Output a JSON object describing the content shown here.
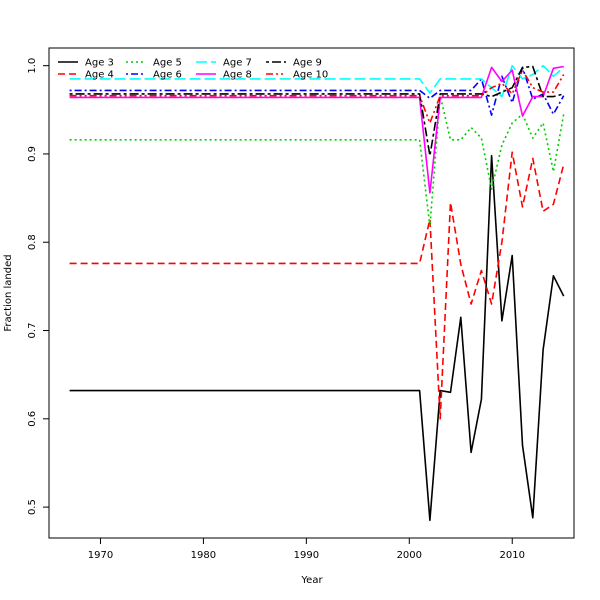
{
  "chart_data": {
    "type": "line",
    "title": "",
    "xlabel": "Year",
    "ylabel": "Fraction landed",
    "xlim": [
      1965,
      2016
    ],
    "ylim": [
      0.465,
      1.02
    ],
    "xticks": [
      1970,
      1980,
      1990,
      2000,
      2010
    ],
    "xtick_labels": [
      "1970",
      "1980",
      "1990",
      "2000",
      "2010"
    ],
    "yticks": [
      0.5,
      0.6,
      0.7,
      0.8,
      0.9,
      1.0
    ],
    "ytick_labels": [
      "0.5",
      "0.6",
      "0.7",
      "0.8",
      "0.9",
      "1.0"
    ],
    "grid": false,
    "legend_position": "top-left",
    "x": [
      1967,
      1968,
      1969,
      1970,
      1971,
      1972,
      1973,
      1974,
      1975,
      1976,
      1977,
      1978,
      1979,
      1980,
      1981,
      1982,
      1983,
      1984,
      1985,
      1986,
      1987,
      1988,
      1989,
      1990,
      1991,
      1992,
      1993,
      1994,
      1995,
      1996,
      1997,
      1998,
      1999,
      2000,
      2001,
      2002,
      2003,
      2004,
      2005,
      2006,
      2007,
      2008,
      2009,
      2010,
      2011,
      2012,
      2013,
      2014,
      2015
    ],
    "series": [
      {
        "name": "Age 3",
        "color": "#000000",
        "dash": "solid",
        "values": [
          0.632,
          0.632,
          0.632,
          0.632,
          0.632,
          0.632,
          0.632,
          0.632,
          0.632,
          0.632,
          0.632,
          0.632,
          0.632,
          0.632,
          0.632,
          0.632,
          0.632,
          0.632,
          0.632,
          0.632,
          0.632,
          0.632,
          0.632,
          0.632,
          0.632,
          0.632,
          0.632,
          0.632,
          0.632,
          0.632,
          0.632,
          0.632,
          0.632,
          0.632,
          0.632,
          0.485,
          0.632,
          0.63,
          0.715,
          0.562,
          0.622,
          0.898,
          0.711,
          0.785,
          0.57,
          0.488,
          0.678,
          0.762,
          0.739
        ]
      },
      {
        "name": "Age 4",
        "color": "#ff0000",
        "dash": "dashed",
        "values": [
          0.776,
          0.776,
          0.776,
          0.776,
          0.776,
          0.776,
          0.776,
          0.776,
          0.776,
          0.776,
          0.776,
          0.776,
          0.776,
          0.776,
          0.776,
          0.776,
          0.776,
          0.776,
          0.776,
          0.776,
          0.776,
          0.776,
          0.776,
          0.776,
          0.776,
          0.776,
          0.776,
          0.776,
          0.776,
          0.776,
          0.776,
          0.776,
          0.776,
          0.776,
          0.776,
          0.826,
          0.6,
          0.845,
          0.775,
          0.73,
          0.768,
          0.73,
          0.8,
          0.902,
          0.84,
          0.895,
          0.835,
          0.843,
          0.888
        ]
      },
      {
        "name": "Age 5",
        "color": "#00cd00",
        "dash": "dotted",
        "values": [
          0.916,
          0.916,
          0.916,
          0.916,
          0.916,
          0.916,
          0.916,
          0.916,
          0.916,
          0.916,
          0.916,
          0.916,
          0.916,
          0.916,
          0.916,
          0.916,
          0.916,
          0.916,
          0.916,
          0.916,
          0.916,
          0.916,
          0.916,
          0.916,
          0.916,
          0.916,
          0.916,
          0.916,
          0.916,
          0.916,
          0.916,
          0.916,
          0.916,
          0.916,
          0.916,
          0.818,
          0.966,
          0.916,
          0.916,
          0.93,
          0.918,
          0.86,
          0.91,
          0.935,
          0.945,
          0.918,
          0.935,
          0.88,
          0.945
        ]
      },
      {
        "name": "Age 6",
        "color": "#0000ff",
        "dash": "dashdot",
        "values": [
          0.972,
          0.972,
          0.972,
          0.972,
          0.972,
          0.972,
          0.972,
          0.972,
          0.972,
          0.972,
          0.972,
          0.972,
          0.972,
          0.972,
          0.972,
          0.972,
          0.972,
          0.972,
          0.972,
          0.972,
          0.972,
          0.972,
          0.972,
          0.972,
          0.972,
          0.972,
          0.972,
          0.972,
          0.972,
          0.972,
          0.972,
          0.972,
          0.972,
          0.972,
          0.972,
          0.963,
          0.972,
          0.972,
          0.972,
          0.972,
          0.985,
          0.944,
          0.988,
          0.958,
          0.998,
          0.962,
          0.968,
          0.945,
          0.966
        ]
      },
      {
        "name": "Age 7",
        "color": "#00ffff",
        "dash": "longdash",
        "values": [
          0.985,
          0.985,
          0.985,
          0.985,
          0.985,
          0.985,
          0.985,
          0.985,
          0.985,
          0.985,
          0.985,
          0.985,
          0.985,
          0.985,
          0.985,
          0.985,
          0.985,
          0.985,
          0.985,
          0.985,
          0.985,
          0.985,
          0.985,
          0.985,
          0.985,
          0.985,
          0.985,
          0.985,
          0.985,
          0.985,
          0.985,
          0.985,
          0.985,
          0.985,
          0.985,
          0.969,
          0.985,
          0.985,
          0.985,
          0.985,
          0.985,
          0.975,
          0.965,
          1.0,
          0.985,
          0.99,
          1.0,
          0.988,
          0.998
        ]
      },
      {
        "name": "Age 8",
        "color": "#ff00ff",
        "dash": "solid",
        "values": [
          0.964,
          0.964,
          0.964,
          0.964,
          0.964,
          0.964,
          0.964,
          0.964,
          0.964,
          0.964,
          0.964,
          0.964,
          0.964,
          0.964,
          0.964,
          0.964,
          0.964,
          0.964,
          0.964,
          0.964,
          0.964,
          0.964,
          0.964,
          0.964,
          0.964,
          0.964,
          0.964,
          0.964,
          0.964,
          0.964,
          0.964,
          0.964,
          0.964,
          0.964,
          0.964,
          0.856,
          0.964,
          0.964,
          0.964,
          0.964,
          0.964,
          0.998,
          0.982,
          0.995,
          0.943,
          0.965,
          0.965,
          0.997,
          0.999
        ]
      },
      {
        "name": "Age 9",
        "color": "#000000",
        "dash": "twodash",
        "values": [
          0.968,
          0.968,
          0.968,
          0.968,
          0.968,
          0.968,
          0.968,
          0.968,
          0.968,
          0.968,
          0.968,
          0.968,
          0.968,
          0.968,
          0.968,
          0.968,
          0.968,
          0.968,
          0.968,
          0.968,
          0.968,
          0.968,
          0.968,
          0.968,
          0.968,
          0.968,
          0.968,
          0.968,
          0.968,
          0.968,
          0.968,
          0.968,
          0.968,
          0.968,
          0.968,
          0.898,
          0.968,
          0.968,
          0.968,
          0.968,
          0.968,
          0.965,
          0.97,
          0.975,
          0.998,
          0.999,
          0.965,
          0.965,
          0.968
        ]
      },
      {
        "name": "Age 10",
        "color": "#ff0000",
        "dash": "dashdotdot",
        "values": [
          0.966,
          0.966,
          0.966,
          0.966,
          0.966,
          0.966,
          0.966,
          0.966,
          0.966,
          0.966,
          0.966,
          0.966,
          0.966,
          0.966,
          0.966,
          0.966,
          0.966,
          0.966,
          0.966,
          0.966,
          0.966,
          0.966,
          0.966,
          0.966,
          0.966,
          0.966,
          0.966,
          0.966,
          0.966,
          0.966,
          0.966,
          0.966,
          0.966,
          0.966,
          0.966,
          0.935,
          0.966,
          0.966,
          0.966,
          0.966,
          0.966,
          0.975,
          0.98,
          0.968,
          0.995,
          0.975,
          0.97,
          0.97,
          0.99
        ]
      }
    ]
  }
}
